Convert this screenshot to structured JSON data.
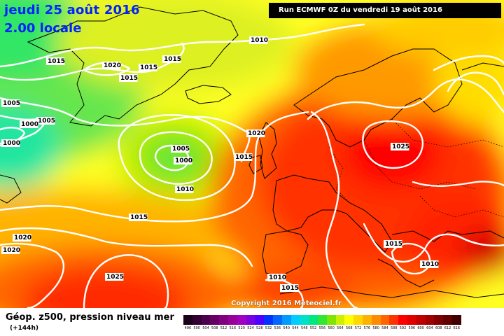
{
  "header": {
    "date": "jeudi 25 août 2016",
    "time": "2.00 locale",
    "run": "Run ECMWF 0Z du vendredi 19 août 2016"
  },
  "copyright": "Copyright 2016 Meteociel.fr",
  "legend": {
    "title": "Géop. z500, pression niveau mer",
    "subtitle": "(+144h)",
    "scale": [
      {
        "label": "496",
        "color": "#1a001a"
      },
      {
        "label": "500",
        "color": "#330033"
      },
      {
        "label": "504",
        "color": "#4d004d"
      },
      {
        "label": "508",
        "color": "#660066"
      },
      {
        "label": "512",
        "color": "#800080"
      },
      {
        "label": "516",
        "color": "#990099"
      },
      {
        "label": "520",
        "color": "#a000c0"
      },
      {
        "label": "524",
        "color": "#7a00e0"
      },
      {
        "label": "528",
        "color": "#4d00ff"
      },
      {
        "label": "532",
        "color": "#0033ff"
      },
      {
        "label": "536",
        "color": "#0066ff"
      },
      {
        "label": "540",
        "color": "#0099ff"
      },
      {
        "label": "544",
        "color": "#00ccff"
      },
      {
        "label": "548",
        "color": "#00e0cc"
      },
      {
        "label": "552",
        "color": "#00e680"
      },
      {
        "label": "556",
        "color": "#33e633"
      },
      {
        "label": "560",
        "color": "#80e600"
      },
      {
        "label": "564",
        "color": "#ccf000"
      },
      {
        "label": "568",
        "color": "#ffff00"
      },
      {
        "label": "572",
        "color": "#ffd900"
      },
      {
        "label": "576",
        "color": "#ffb300"
      },
      {
        "label": "580",
        "color": "#ff8c00"
      },
      {
        "label": "584",
        "color": "#ff6600"
      },
      {
        "label": "588",
        "color": "#ff3300"
      },
      {
        "label": "592",
        "color": "#ff0000"
      },
      {
        "label": "596",
        "color": "#e00000"
      },
      {
        "label": "600",
        "color": "#c00000"
      },
      {
        "label": "604",
        "color": "#a00000"
      },
      {
        "label": "608",
        "color": "#800000"
      },
      {
        "label": "612",
        "color": "#600000"
      },
      {
        "label": "616",
        "color": "#400000"
      }
    ]
  },
  "isobars": [
    {
      "label": "1010",
      "xy": [
        358,
        60
      ]
    },
    {
      "label": "1015",
      "xy": [
        68,
        90
      ]
    },
    {
      "label": "1020",
      "xy": [
        148,
        96
      ]
    },
    {
      "label": "1015",
      "xy": [
        200,
        99
      ]
    },
    {
      "label": "1015",
      "xy": [
        234,
        87
      ]
    },
    {
      "label": "1015",
      "xy": [
        172,
        114
      ]
    },
    {
      "label": "1005",
      "xy": [
        4,
        150
      ]
    },
    {
      "label": "1005",
      "xy": [
        54,
        175
      ]
    },
    {
      "label": "1000",
      "xy": [
        30,
        180
      ]
    },
    {
      "label": "1000",
      "xy": [
        4,
        207
      ]
    },
    {
      "label": "1020",
      "xy": [
        354,
        193
      ]
    },
    {
      "label": "1005",
      "xy": [
        246,
        215
      ]
    },
    {
      "label": "1000",
      "xy": [
        250,
        232
      ]
    },
    {
      "label": "1015",
      "xy": [
        336,
        227
      ]
    },
    {
      "label": "1010",
      "xy": [
        252,
        273
      ]
    },
    {
      "label": "1025",
      "xy": [
        560,
        212
      ]
    },
    {
      "label": "1015",
      "xy": [
        186,
        313
      ]
    },
    {
      "label": "1020",
      "xy": [
        20,
        342
      ]
    },
    {
      "label": "1020",
      "xy": [
        4,
        360
      ]
    },
    {
      "label": "1015",
      "xy": [
        550,
        351
      ]
    },
    {
      "label": "1010",
      "xy": [
        602,
        380
      ]
    },
    {
      "label": "1025",
      "xy": [
        152,
        398
      ]
    },
    {
      "label": "1010",
      "xy": [
        384,
        399
      ]
    },
    {
      "label": "1015",
      "xy": [
        402,
        414
      ]
    }
  ]
}
